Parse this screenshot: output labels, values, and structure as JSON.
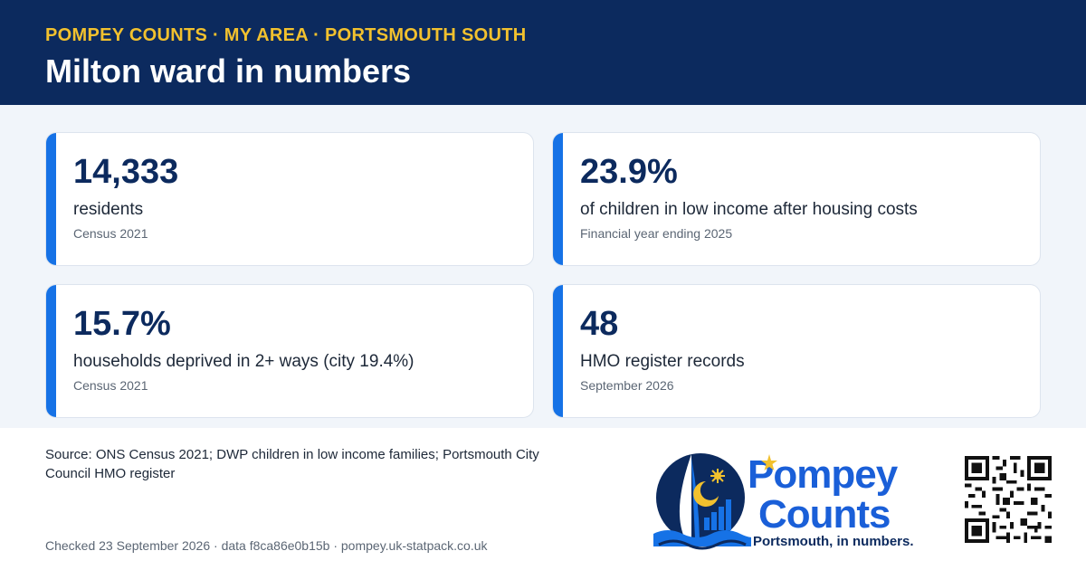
{
  "header": {
    "kicker": "POMPEY COUNTS · MY AREA · PORTSMOUTH SOUTH",
    "title": "Milton ward in numbers"
  },
  "stats": [
    {
      "value": "14,333",
      "label": "residents",
      "source": "Census 2021"
    },
    {
      "value": "23.9%",
      "label": "of children in low income after housing costs",
      "source": "Financial year ending 2025"
    },
    {
      "value": "15.7%",
      "label": "households deprived in 2+ ways (city 19.4%)",
      "source": "Census 2021"
    },
    {
      "value": "48",
      "label": "HMO register records",
      "source": "September 2026"
    }
  ],
  "footer": {
    "source_note": "Source: ONS Census 2021; DWP children in low income families; Portsmouth City Council HMO register",
    "checked_line": "Checked 23 September 2026 · data f8ca86e0b15b · pompey.uk-statpack.co.uk"
  },
  "logo": {
    "word1": "Pompey",
    "word2": "Counts",
    "tagline": "Portsmouth, in numbers."
  },
  "icons": {
    "logo_mark": "spinnaker-tower-star-crescent-icon",
    "qr": "qr-code-icon"
  },
  "colors": {
    "header_bg": "#0c2a5e",
    "kicker": "#f2c12e",
    "accent": "#1672e6",
    "value_text": "#0c2a5e",
    "brand_blue": "#1a5fd8"
  }
}
